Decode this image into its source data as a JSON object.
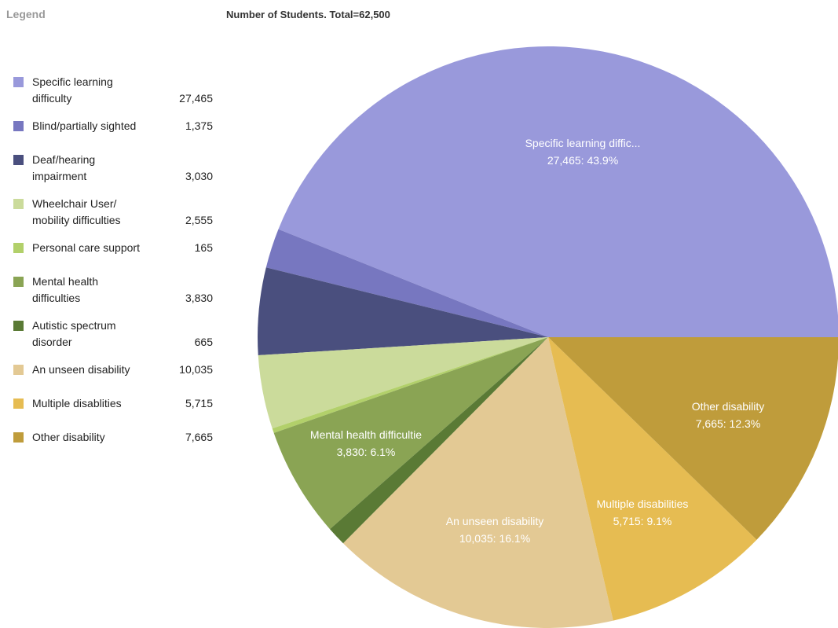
{
  "legend": {
    "title": "Legend"
  },
  "chart_data": {
    "type": "pie",
    "title": "Number of Students. Total=62,500",
    "slices": [
      {
        "legend_lines": [
          "Specific learning",
          "difficulty"
        ],
        "value_label": "27,465",
        "value": 27465,
        "color": "#9999db",
        "slice_label": [
          "Specific learning diffic...",
          "27,465:  43.9%"
        ]
      },
      {
        "legend_lines": [
          "Blind/partially sighted"
        ],
        "value_label": "1,375",
        "value": 1375,
        "color": "#7777c0",
        "slice_label": null
      },
      {
        "legend_lines": [
          "Deaf/hearing",
          "impairment"
        ],
        "value_label": "3,030",
        "value": 3030,
        "color": "#4a4f7e",
        "slice_label": null
      },
      {
        "legend_lines": [
          "Wheelchair User/",
          "mobility difficulties"
        ],
        "value_label": "2,555",
        "value": 2555,
        "color": "#cbdb9b",
        "slice_label": null
      },
      {
        "legend_lines": [
          "Personal care support"
        ],
        "value_label": "165",
        "value": 165,
        "color": "#b2d06a",
        "slice_label": null
      },
      {
        "legend_lines": [
          "Mental health",
          "difficulties"
        ],
        "value_label": "3,830",
        "value": 3830,
        "color": "#8aa454",
        "slice_label": [
          "Mental health difficultie",
          "3,830:  6.1%"
        ]
      },
      {
        "legend_lines": [
          "Autistic spectrum",
          "disorder"
        ],
        "value_label": "665",
        "value": 665,
        "color": "#5a7a35",
        "slice_label": null
      },
      {
        "legend_lines": [
          "An unseen disability"
        ],
        "value_label": "10,035",
        "value": 10035,
        "color": "#e3c994",
        "slice_label": [
          "An unseen disability",
          "10,035:  16.1%"
        ]
      },
      {
        "legend_lines": [
          "Multiple disablities"
        ],
        "value_label": "5,715",
        "value": 5715,
        "color": "#e6bc52",
        "slice_label": [
          "Multiple disabilities",
          "5,715:  9.1%"
        ]
      },
      {
        "legend_lines": [
          "Other disability"
        ],
        "value_label": "7,665",
        "value": 7665,
        "color": "#bf9c3b",
        "slice_label": [
          "Other disability",
          "7,665:  12.3%"
        ]
      }
    ]
  }
}
